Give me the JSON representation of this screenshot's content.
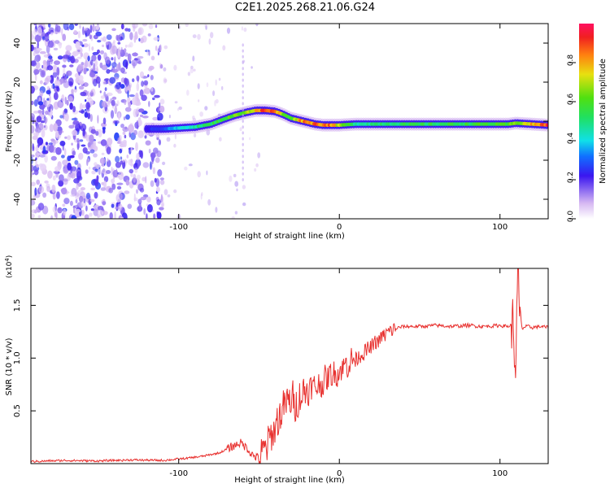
{
  "title": "C2E1.2025.268.21.06.G24",
  "chart_data": [
    {
      "type": "heatmap",
      "xlabel": "Height of straight line (km)",
      "ylabel": "Frequency (Hz)",
      "xlim": [
        -192,
        130
      ],
      "ylim": [
        -50,
        50
      ],
      "x_ticks": [
        -100,
        0,
        100
      ],
      "y_ticks": [
        -40,
        -20,
        0,
        20,
        40
      ],
      "x_tick_labels": [
        "-100",
        "0",
        "100"
      ],
      "y_tick_labels": [
        "-40",
        "-20",
        "0",
        "20",
        "40"
      ],
      "colorbar_label": "Normalized spectral amplitude",
      "colorbar_ticks": [
        0.0,
        0.2,
        0.4,
        0.6,
        0.8
      ],
      "colorbar_tick_labels": [
        "0.0",
        "0.2",
        "0.4",
        "0.6",
        "0.8"
      ],
      "colorbar_range": [
        0,
        1
      ],
      "ridge": {
        "x": [
          -120,
          -110,
          -100,
          -90,
          -80,
          -72,
          -65,
          -58,
          -52,
          -46,
          -40,
          -35,
          -30,
          -25,
          -20,
          -15,
          -10,
          -5,
          0,
          10,
          30,
          60,
          90,
          105,
          110,
          120,
          130
        ],
        "y": [
          -4,
          -4,
          -3.5,
          -3,
          -1.5,
          1,
          3,
          4.5,
          5.5,
          5.5,
          5,
          3.5,
          1.5,
          0.5,
          -0.5,
          -1.5,
          -2,
          -2,
          -2,
          -1.5,
          -1.5,
          -1.5,
          -1.5,
          -1.5,
          -1,
          -1.5,
          -2
        ],
        "amp": [
          0.25,
          0.3,
          0.4,
          0.5,
          0.55,
          0.6,
          0.65,
          0.7,
          0.8,
          0.95,
          0.9,
          0.7,
          0.6,
          0.85,
          0.9,
          0.9,
          0.92,
          0.9,
          0.7,
          0.5,
          0.55,
          0.55,
          0.6,
          0.6,
          0.7,
          0.8,
          0.95
        ]
      }
    },
    {
      "type": "line",
      "xlabel": "Height of straight line (km)",
      "ylabel": "SNR (10 * v/v)",
      "scale_label": "(x10",
      "scale_exponent": "4",
      "scale_close": ")",
      "xlim": [
        -192,
        130
      ],
      "ylim": [
        0,
        1.85
      ],
      "x_ticks": [
        -100,
        0,
        100
      ],
      "y_ticks": [
        0.5,
        1.0,
        1.5
      ],
      "x_tick_labels": [
        "-100",
        "0",
        "100"
      ],
      "y_tick_labels": [
        "0.5",
        "1.0",
        "1.5"
      ],
      "series": [
        {
          "name": "SNR",
          "color": "#e8312f",
          "x": [
            -192,
            -170,
            -150,
            -130,
            -110,
            -95,
            -85,
            -75,
            -68,
            -62,
            -58,
            -54,
            -50,
            -47,
            -44,
            -40,
            -37,
            -34,
            -30,
            -27,
            -24,
            -20,
            -16,
            -12,
            -8,
            -4,
            0,
            5,
            10,
            15,
            20,
            25,
            30,
            35,
            40,
            50,
            60,
            70,
            80,
            90,
            100,
            105,
            108,
            110,
            111,
            112,
            114,
            116,
            120,
            125,
            130
          ],
          "y": [
            0.02,
            0.03,
            0.025,
            0.035,
            0.03,
            0.05,
            0.07,
            0.1,
            0.15,
            0.2,
            0.16,
            0.08,
            0.05,
            0.1,
            0.2,
            0.35,
            0.45,
            0.55,
            0.6,
            0.58,
            0.65,
            0.7,
            0.72,
            0.75,
            0.8,
            0.85,
            0.88,
            0.95,
            1.0,
            1.05,
            1.1,
            1.18,
            1.24,
            1.28,
            1.3,
            1.3,
            1.31,
            1.3,
            1.31,
            1.3,
            1.31,
            1.3,
            1.32,
            0.9,
            1.85,
            1.4,
            1.28,
            1.3,
            1.29,
            1.3,
            1.29
          ]
        }
      ]
    }
  ]
}
